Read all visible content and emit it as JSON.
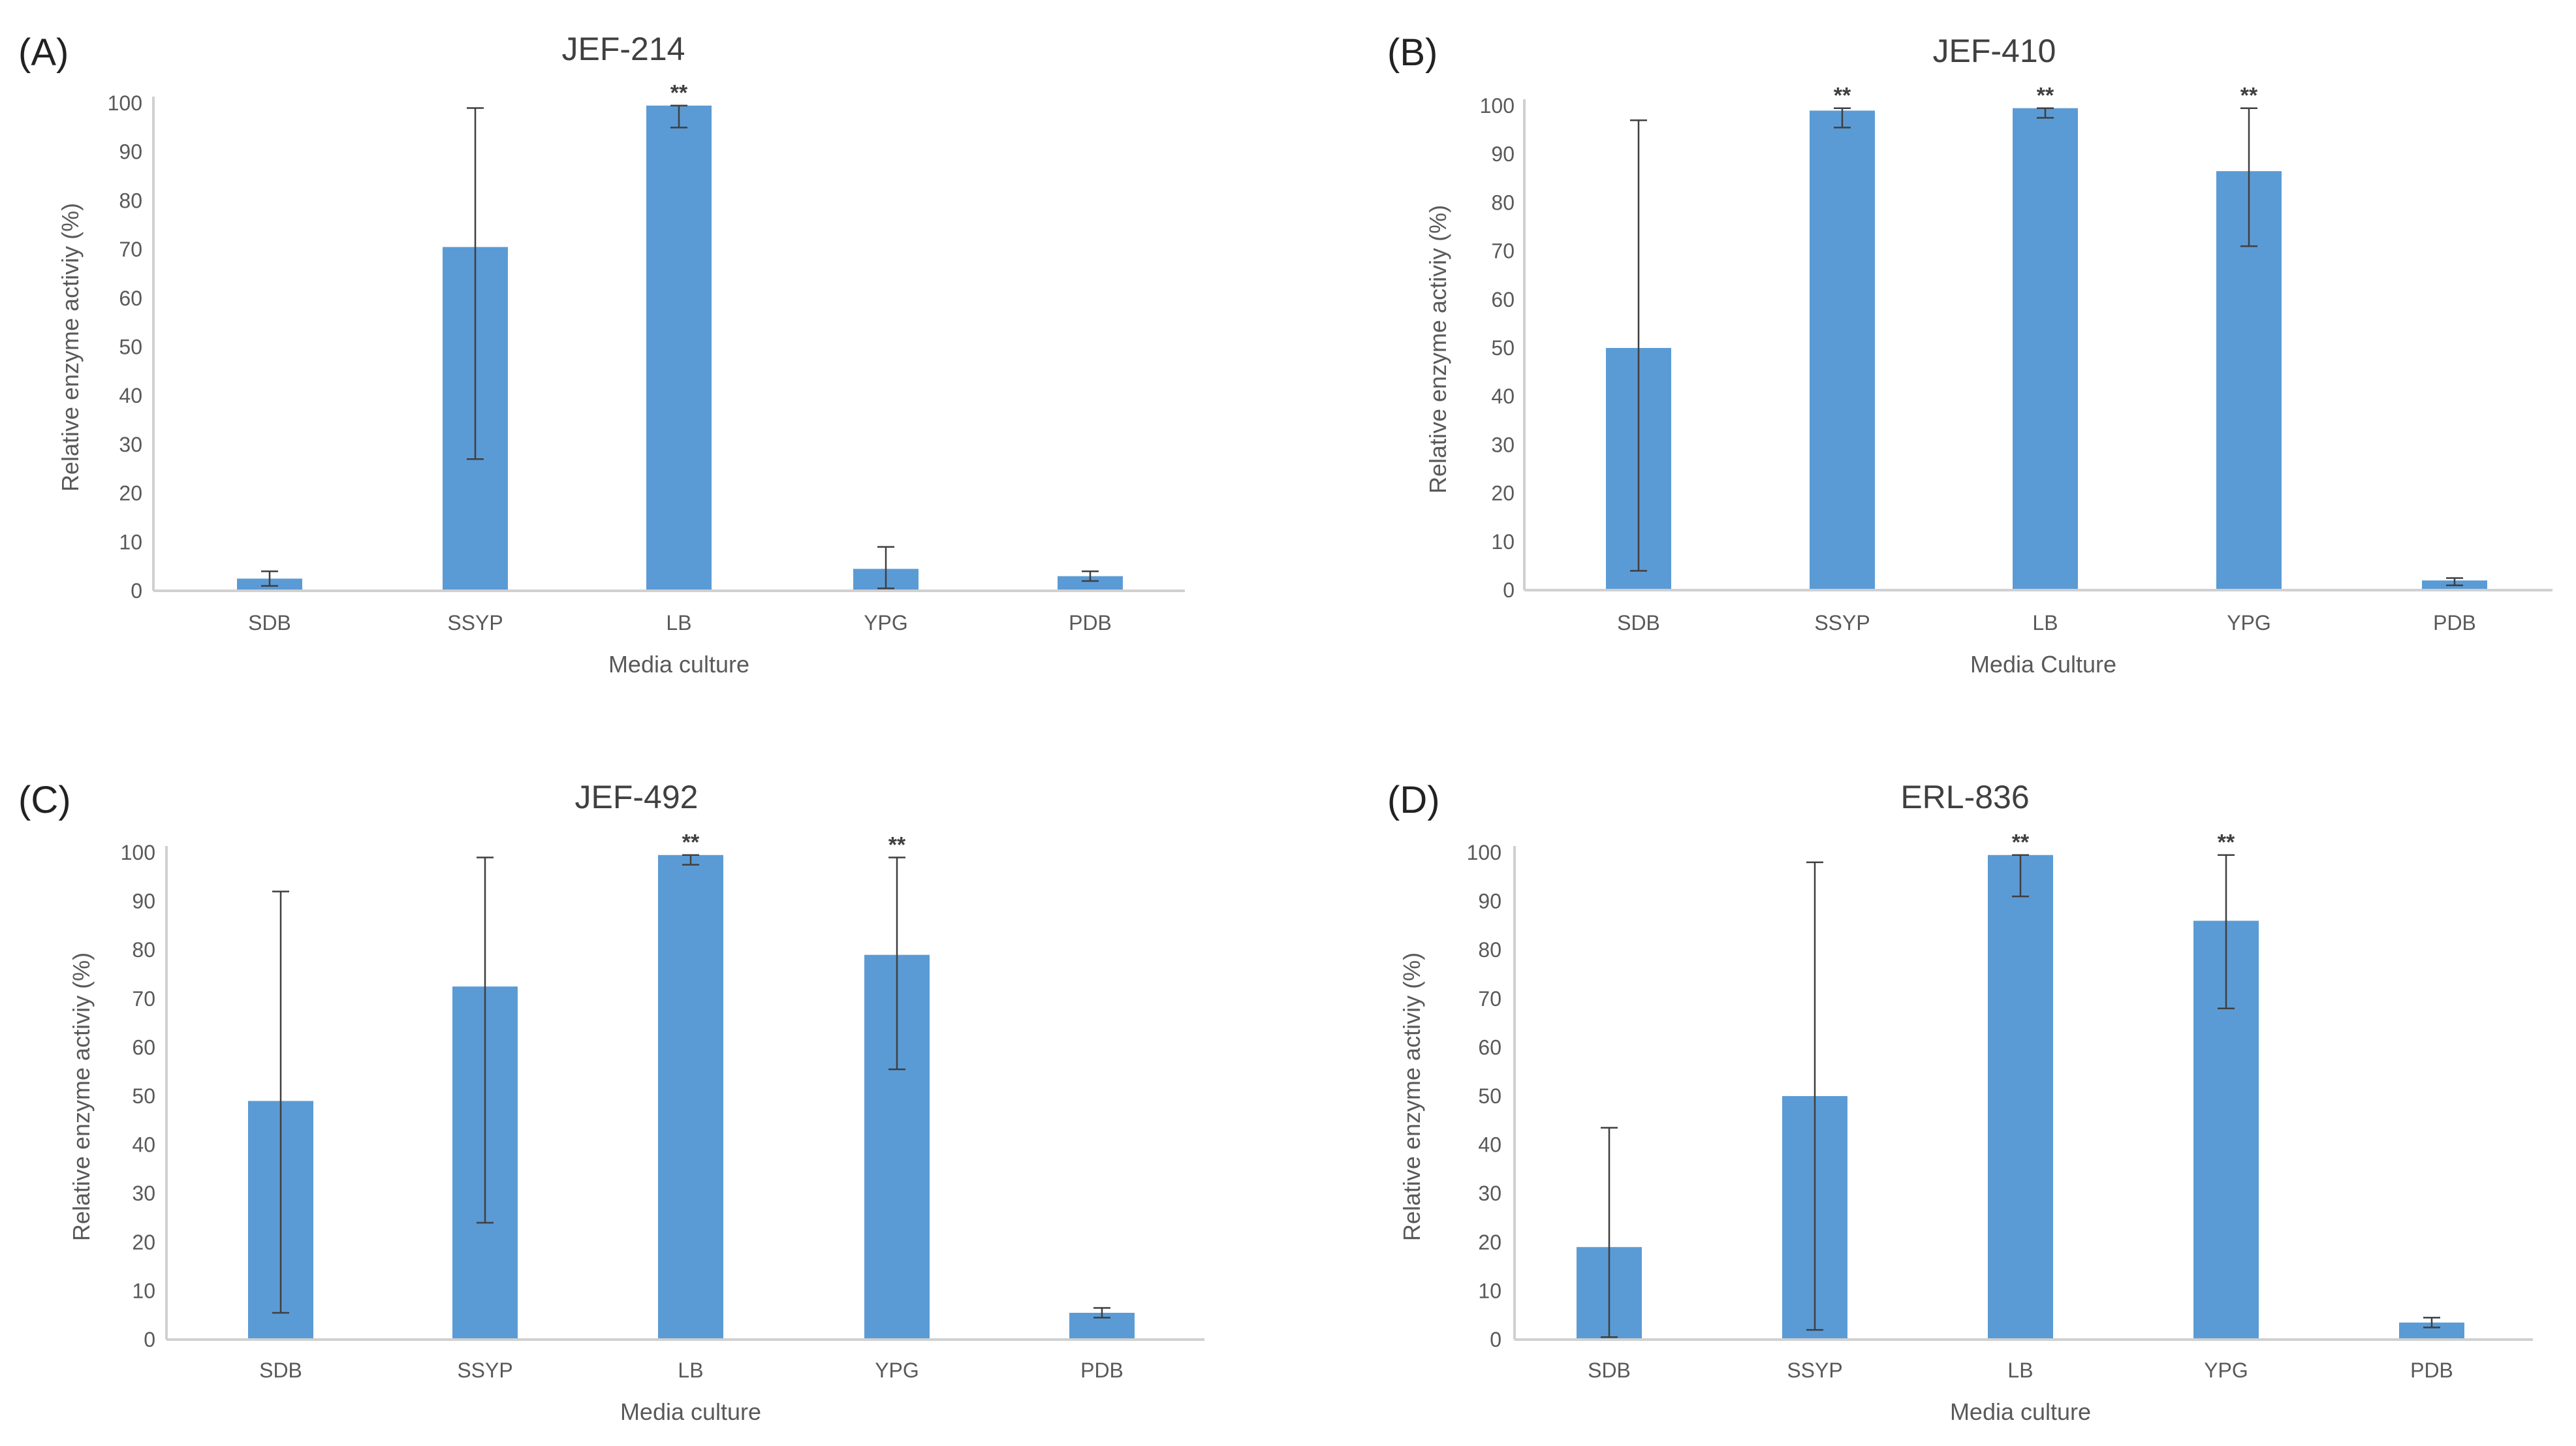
{
  "figure": {
    "colors": {
      "bar": "#5b9bd5",
      "text": "#595959",
      "axis": "#d0d0d0",
      "error_bar": "#3f3f3f"
    }
  },
  "chart_data": [
    {
      "panel_label": "(A)",
      "type": "bar",
      "title": "JEF-214",
      "xlabel": "Media culture",
      "ylabel": "Relative enzyme activiy (%)",
      "ylim": [
        0,
        100
      ],
      "yticks": [
        "0",
        "10",
        "20",
        "30",
        "40",
        "50",
        "60",
        "70",
        "80",
        "90",
        "100"
      ],
      "categories": [
        "SDB",
        "SSYP",
        "LB",
        "YPG",
        "PDB"
      ],
      "values": [
        2.5,
        70.5,
        99.5,
        4.5,
        3
      ],
      "error_low": [
        1,
        27,
        95,
        0.5,
        2
      ],
      "error_high": [
        4,
        99,
        99.5,
        9,
        4
      ],
      "significance": [
        "",
        "",
        "**",
        "",
        ""
      ]
    },
    {
      "panel_label": "(B)",
      "type": "bar",
      "title": "JEF-410",
      "xlabel": "Media Culture",
      "ylabel": "Relative enzyme activiy (%)",
      "ylim": [
        0,
        100
      ],
      "yticks": [
        "0",
        "10",
        "20",
        "30",
        "40",
        "50",
        "60",
        "70",
        "80",
        "90",
        "100"
      ],
      "categories": [
        "SDB",
        "SSYP",
        "LB",
        "YPG",
        "PDB"
      ],
      "values": [
        50,
        99,
        99.5,
        86.5,
        2
      ],
      "error_low": [
        4,
        95.5,
        97.5,
        71,
        1
      ],
      "error_high": [
        97,
        99.5,
        99.5,
        99.5,
        2.5
      ],
      "significance": [
        "",
        "**",
        "**",
        "**",
        ""
      ]
    },
    {
      "panel_label": "(C)",
      "type": "bar",
      "title": "JEF-492",
      "xlabel": "Media culture",
      "ylabel": "Relative enzyme activiy (%)",
      "ylim": [
        0,
        100
      ],
      "yticks": [
        "0",
        "10",
        "20",
        "30",
        "40",
        "50",
        "60",
        "70",
        "80",
        "90",
        "100"
      ],
      "categories": [
        "SDB",
        "SSYP",
        "LB",
        "YPG",
        "PDB"
      ],
      "values": [
        49,
        72.5,
        99.5,
        79,
        5.5
      ],
      "error_low": [
        5.5,
        24,
        97.5,
        55.5,
        4.5
      ],
      "error_high": [
        92,
        99,
        99.5,
        99,
        6.5
      ],
      "significance": [
        "",
        "",
        "**",
        "**",
        ""
      ]
    },
    {
      "panel_label": "(D)",
      "type": "bar",
      "title": "ERL-836",
      "xlabel": "Media culture",
      "ylabel": "Relative enzyme activiy (%)",
      "ylim": [
        0,
        100
      ],
      "yticks": [
        "0",
        "10",
        "20",
        "30",
        "40",
        "50",
        "60",
        "70",
        "80",
        "90",
        "100"
      ],
      "categories": [
        "SDB",
        "SSYP",
        "LB",
        "YPG",
        "PDB"
      ],
      "values": [
        19,
        50,
        99.5,
        86,
        3.5
      ],
      "error_low": [
        0.5,
        2,
        91,
        68,
        2.5
      ],
      "error_high": [
        43.5,
        98,
        99.5,
        99.5,
        4.5
      ],
      "significance": [
        "",
        "",
        "**",
        "**",
        ""
      ]
    }
  ]
}
